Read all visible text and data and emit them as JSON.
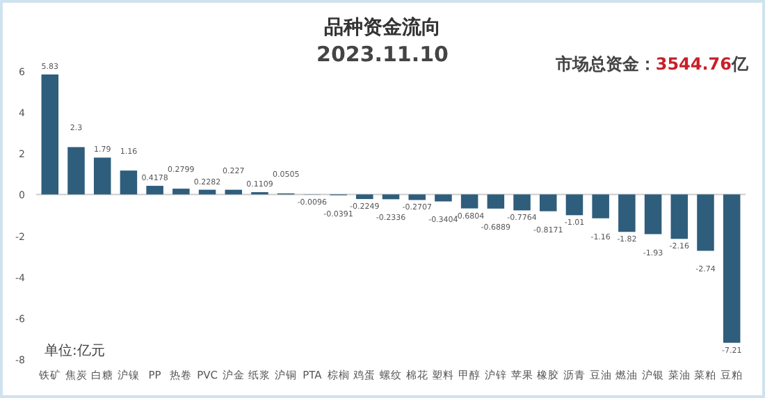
{
  "chart_data": {
    "type": "bar",
    "title": "品种资金流向",
    "subtitle": "2023.11.10",
    "annotations": [
      "市场总资金：3544.76亿",
      "单位:亿元"
    ],
    "categories": [
      "铁矿",
      "焦炭",
      "白糖",
      "沪镍",
      "PP",
      "热卷",
      "PVC",
      "沪金",
      "纸浆",
      "沪铜",
      "PTA",
      "棕榈",
      "鸡蛋",
      "螺纹",
      "棉花",
      "塑料",
      "甲醇",
      "沪锌",
      "苹果",
      "橡胶",
      "沥青",
      "豆油",
      "燃油",
      "沪银",
      "菜油",
      "菜粕",
      "豆粕"
    ],
    "values": [
      5.83,
      2.3,
      1.79,
      1.16,
      0.4178,
      0.2799,
      0.2282,
      0.227,
      0.1109,
      0.0505,
      -0.0096,
      -0.0391,
      -0.2249,
      -0.2336,
      -0.2707,
      -0.3404,
      -0.6804,
      -0.6889,
      -0.7764,
      -0.8171,
      -1.01,
      -1.16,
      -1.82,
      -1.93,
      -2.16,
      -2.74,
      -7.21
    ],
    "color": "#2f5d7c",
    "ylim": [
      -8,
      6
    ],
    "yticks": [
      -8,
      -6,
      -4,
      -2,
      0,
      2,
      4,
      6
    ],
    "data_labels": true
  }
}
